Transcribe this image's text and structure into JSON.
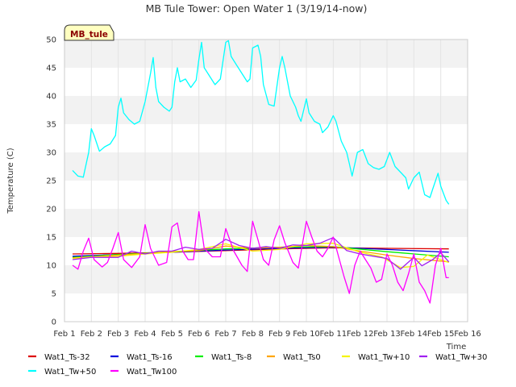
{
  "chart_data": {
    "type": "line",
    "title": "MB Tule Tower: Open Water 1 (3/19/14-now)",
    "xlabel": "Time",
    "ylabel": "Temperature (C)",
    "badge": "MB_tule",
    "ylim": [
      0,
      50
    ],
    "yticks": [
      0,
      5,
      10,
      15,
      20,
      25,
      30,
      35,
      40,
      45,
      50
    ],
    "xlim": [
      1,
      16
    ],
    "xticks": [
      {
        "value": 1,
        "label": "Feb 1"
      },
      {
        "value": 2,
        "label": "Feb 2"
      },
      {
        "value": 3,
        "label": "Feb 3"
      },
      {
        "value": 4,
        "label": "Feb 4"
      },
      {
        "value": 5,
        "label": "Feb 5"
      },
      {
        "value": 6,
        "label": "Feb 6"
      },
      {
        "value": 7,
        "label": "Feb 7"
      },
      {
        "value": 8,
        "label": "Feb 8"
      },
      {
        "value": 9,
        "label": "Feb 9"
      },
      {
        "value": 10,
        "label": "Feb 10"
      },
      {
        "value": 11,
        "label": "Feb 11"
      },
      {
        "value": 12,
        "label": "Feb 12"
      },
      {
        "value": 13,
        "label": "Feb 13"
      },
      {
        "value": 14,
        "label": "Feb 14"
      },
      {
        "value": 15,
        "label": "Feb 15"
      },
      {
        "value": 16,
        "label": "Feb 16"
      }
    ],
    "series": [
      {
        "name": "Wat1_Ts-32",
        "color": "#dd0000",
        "points": [
          [
            1.3,
            12.0
          ],
          [
            3,
            12.1
          ],
          [
            5,
            12.3
          ],
          [
            7,
            12.6
          ],
          [
            9,
            12.9
          ],
          [
            11,
            13.1
          ],
          [
            13,
            13.0
          ],
          [
            15.3,
            12.9
          ]
        ]
      },
      {
        "name": "Wat1_Ts-16",
        "color": "#0000dd",
        "points": [
          [
            1.3,
            11.6
          ],
          [
            3,
            11.9
          ],
          [
            5,
            12.3
          ],
          [
            7,
            12.7
          ],
          [
            9,
            13.0
          ],
          [
            11,
            13.2
          ],
          [
            13,
            12.8
          ],
          [
            15.3,
            12.3
          ]
        ]
      },
      {
        "name": "Wat1_Ts-8",
        "color": "#00ee00",
        "points": [
          [
            1.3,
            11.4
          ],
          [
            3,
            11.9
          ],
          [
            5,
            12.4
          ],
          [
            7,
            12.9
          ],
          [
            9,
            13.2
          ],
          [
            11,
            13.3
          ],
          [
            13,
            12.4
          ],
          [
            15.3,
            11.5
          ]
        ]
      },
      {
        "name": "Wat1_Ts0",
        "color": "#ffa500",
        "points": [
          [
            1.3,
            11.3
          ],
          [
            3,
            11.8
          ],
          [
            5,
            12.4
          ],
          [
            6,
            12.6
          ],
          [
            7,
            13.4
          ],
          [
            8,
            13.0
          ],
          [
            9,
            13.2
          ],
          [
            10,
            13.5
          ],
          [
            11,
            13.3
          ],
          [
            12,
            12.5
          ],
          [
            13,
            11.8
          ],
          [
            14,
            11.2
          ],
          [
            15.3,
            10.6
          ]
        ]
      },
      {
        "name": "Wat1_Tw+10",
        "color": "#f5f500",
        "points": [
          [
            1.3,
            11.2
          ],
          [
            2,
            11.5
          ],
          [
            3,
            11.6
          ],
          [
            4,
            12.0
          ],
          [
            5,
            12.3
          ],
          [
            6,
            12.8
          ],
          [
            7,
            13.8
          ],
          [
            8,
            12.5
          ],
          [
            9,
            12.8
          ],
          [
            10,
            13.8
          ],
          [
            11,
            13.9
          ],
          [
            12,
            12.3
          ],
          [
            12.8,
            11.5
          ],
          [
            13.5,
            9.6
          ],
          [
            14,
            9.8
          ],
          [
            14.5,
            11.8
          ],
          [
            15.3,
            10.5
          ]
        ]
      },
      {
        "name": "Wat1_Tw+30",
        "color": "#a020f0",
        "points": [
          [
            1.3,
            11.0
          ],
          [
            2,
            11.4
          ],
          [
            3,
            11.4
          ],
          [
            3.5,
            12.5
          ],
          [
            4,
            12.0
          ],
          [
            4.5,
            12.5
          ],
          [
            5,
            12.5
          ],
          [
            5.5,
            13.2
          ],
          [
            6,
            12.8
          ],
          [
            6.5,
            13.0
          ],
          [
            7,
            14.6
          ],
          [
            7.5,
            13.5
          ],
          [
            8,
            13.0
          ],
          [
            8.5,
            13.3
          ],
          [
            9,
            13.0
          ],
          [
            9.5,
            13.6
          ],
          [
            10,
            13.5
          ],
          [
            10.5,
            13.9
          ],
          [
            11,
            14.9
          ],
          [
            11.5,
            12.6
          ],
          [
            12,
            12.0
          ],
          [
            12.5,
            11.6
          ],
          [
            13,
            11.2
          ],
          [
            13.5,
            9.3
          ],
          [
            14,
            11.4
          ],
          [
            14.3,
            9.9
          ],
          [
            14.7,
            11.0
          ],
          [
            15,
            12.2
          ],
          [
            15.3,
            10.6
          ]
        ]
      },
      {
        "name": "Wat1_Tw+50",
        "color": "#00ffff",
        "points": [
          [
            1.3,
            26.8
          ],
          [
            1.5,
            25.8
          ],
          [
            1.7,
            25.6
          ],
          [
            1.9,
            30.0
          ],
          [
            2.0,
            34.2
          ],
          [
            2.1,
            33.0
          ],
          [
            2.3,
            30.2
          ],
          [
            2.5,
            31.0
          ],
          [
            2.7,
            31.5
          ],
          [
            2.9,
            33.0
          ],
          [
            3.0,
            38.0
          ],
          [
            3.1,
            39.6
          ],
          [
            3.2,
            37.0
          ],
          [
            3.4,
            35.8
          ],
          [
            3.6,
            35.0
          ],
          [
            3.8,
            35.5
          ],
          [
            4.0,
            39.0
          ],
          [
            4.2,
            44.0
          ],
          [
            4.3,
            46.8
          ],
          [
            4.4,
            41.5
          ],
          [
            4.5,
            39.0
          ],
          [
            4.7,
            38.0
          ],
          [
            4.9,
            37.3
          ],
          [
            5.0,
            38.0
          ],
          [
            5.1,
            42.5
          ],
          [
            5.2,
            45.0
          ],
          [
            5.3,
            42.5
          ],
          [
            5.5,
            43.0
          ],
          [
            5.7,
            41.5
          ],
          [
            5.9,
            42.8
          ],
          [
            6.0,
            46.5
          ],
          [
            6.1,
            49.5
          ],
          [
            6.2,
            45.0
          ],
          [
            6.4,
            43.5
          ],
          [
            6.6,
            42.0
          ],
          [
            6.8,
            43.0
          ],
          [
            7.0,
            49.5
          ],
          [
            7.1,
            49.8
          ],
          [
            7.2,
            47.0
          ],
          [
            7.4,
            45.5
          ],
          [
            7.6,
            44.0
          ],
          [
            7.8,
            42.5
          ],
          [
            7.9,
            43.0
          ],
          [
            8.0,
            48.5
          ],
          [
            8.2,
            49.0
          ],
          [
            8.3,
            47.0
          ],
          [
            8.4,
            42.0
          ],
          [
            8.6,
            38.5
          ],
          [
            8.8,
            38.2
          ],
          [
            9.0,
            45.0
          ],
          [
            9.1,
            47.0
          ],
          [
            9.2,
            45.0
          ],
          [
            9.4,
            40.0
          ],
          [
            9.6,
            38.0
          ],
          [
            9.7,
            36.5
          ],
          [
            9.8,
            35.5
          ],
          [
            10.0,
            39.5
          ],
          [
            10.1,
            37.0
          ],
          [
            10.3,
            35.5
          ],
          [
            10.5,
            35.0
          ],
          [
            10.6,
            33.5
          ],
          [
            10.8,
            34.5
          ],
          [
            11.0,
            36.5
          ],
          [
            11.1,
            35.5
          ],
          [
            11.3,
            32.0
          ],
          [
            11.5,
            30.0
          ],
          [
            11.6,
            28.0
          ],
          [
            11.7,
            25.8
          ],
          [
            11.9,
            30.0
          ],
          [
            12.1,
            30.5
          ],
          [
            12.3,
            28.0
          ],
          [
            12.5,
            27.3
          ],
          [
            12.7,
            27.0
          ],
          [
            12.9,
            27.5
          ],
          [
            13.1,
            30.0
          ],
          [
            13.3,
            27.5
          ],
          [
            13.5,
            26.5
          ],
          [
            13.7,
            25.5
          ],
          [
            13.8,
            23.5
          ],
          [
            14.0,
            25.5
          ],
          [
            14.2,
            26.5
          ],
          [
            14.4,
            22.5
          ],
          [
            14.6,
            22.0
          ],
          [
            14.7,
            23.5
          ],
          [
            14.9,
            26.3
          ],
          [
            15.0,
            24.0
          ],
          [
            15.2,
            21.5
          ],
          [
            15.3,
            20.8
          ]
        ]
      },
      {
        "name": "Wat1_Tw100",
        "color": "#ff00ff",
        "points": [
          [
            1.3,
            10.0
          ],
          [
            1.5,
            9.3
          ],
          [
            1.7,
            12.5
          ],
          [
            1.9,
            14.8
          ],
          [
            2.1,
            11.0
          ],
          [
            2.4,
            9.7
          ],
          [
            2.6,
            10.5
          ],
          [
            2.8,
            13.0
          ],
          [
            3.0,
            15.8
          ],
          [
            3.2,
            11.0
          ],
          [
            3.5,
            9.6
          ],
          [
            3.8,
            11.5
          ],
          [
            4.0,
            17.2
          ],
          [
            4.2,
            13.0
          ],
          [
            4.5,
            10.0
          ],
          [
            4.8,
            10.5
          ],
          [
            5.0,
            16.8
          ],
          [
            5.2,
            17.5
          ],
          [
            5.4,
            12.5
          ],
          [
            5.6,
            11.0
          ],
          [
            5.8,
            11.0
          ],
          [
            6.0,
            19.5
          ],
          [
            6.2,
            13.0
          ],
          [
            6.5,
            11.5
          ],
          [
            6.8,
            11.5
          ],
          [
            7.0,
            16.5
          ],
          [
            7.3,
            12.5
          ],
          [
            7.6,
            10.0
          ],
          [
            7.8,
            8.9
          ],
          [
            8.0,
            17.8
          ],
          [
            8.2,
            14.5
          ],
          [
            8.4,
            11.0
          ],
          [
            8.6,
            10.0
          ],
          [
            8.8,
            14.5
          ],
          [
            9.0,
            17.0
          ],
          [
            9.2,
            14.0
          ],
          [
            9.5,
            10.5
          ],
          [
            9.7,
            9.5
          ],
          [
            10.0,
            17.8
          ],
          [
            10.2,
            15.0
          ],
          [
            10.4,
            12.5
          ],
          [
            10.6,
            11.5
          ],
          [
            10.8,
            13.0
          ],
          [
            11.0,
            15.0
          ],
          [
            11.2,
            11.5
          ],
          [
            11.4,
            8.0
          ],
          [
            11.6,
            5.0
          ],
          [
            11.8,
            10.0
          ],
          [
            12.0,
            12.5
          ],
          [
            12.2,
            11.0
          ],
          [
            12.4,
            9.5
          ],
          [
            12.6,
            7.0
          ],
          [
            12.8,
            7.5
          ],
          [
            13.0,
            12.0
          ],
          [
            13.2,
            10.0
          ],
          [
            13.4,
            7.0
          ],
          [
            13.6,
            5.5
          ],
          [
            13.8,
            8.5
          ],
          [
            14.0,
            12.0
          ],
          [
            14.2,
            7.0
          ],
          [
            14.4,
            5.5
          ],
          [
            14.6,
            3.3
          ],
          [
            14.8,
            10.0
          ],
          [
            15.0,
            13.0
          ],
          [
            15.2,
            7.8
          ],
          [
            15.3,
            7.8
          ]
        ]
      }
    ]
  }
}
